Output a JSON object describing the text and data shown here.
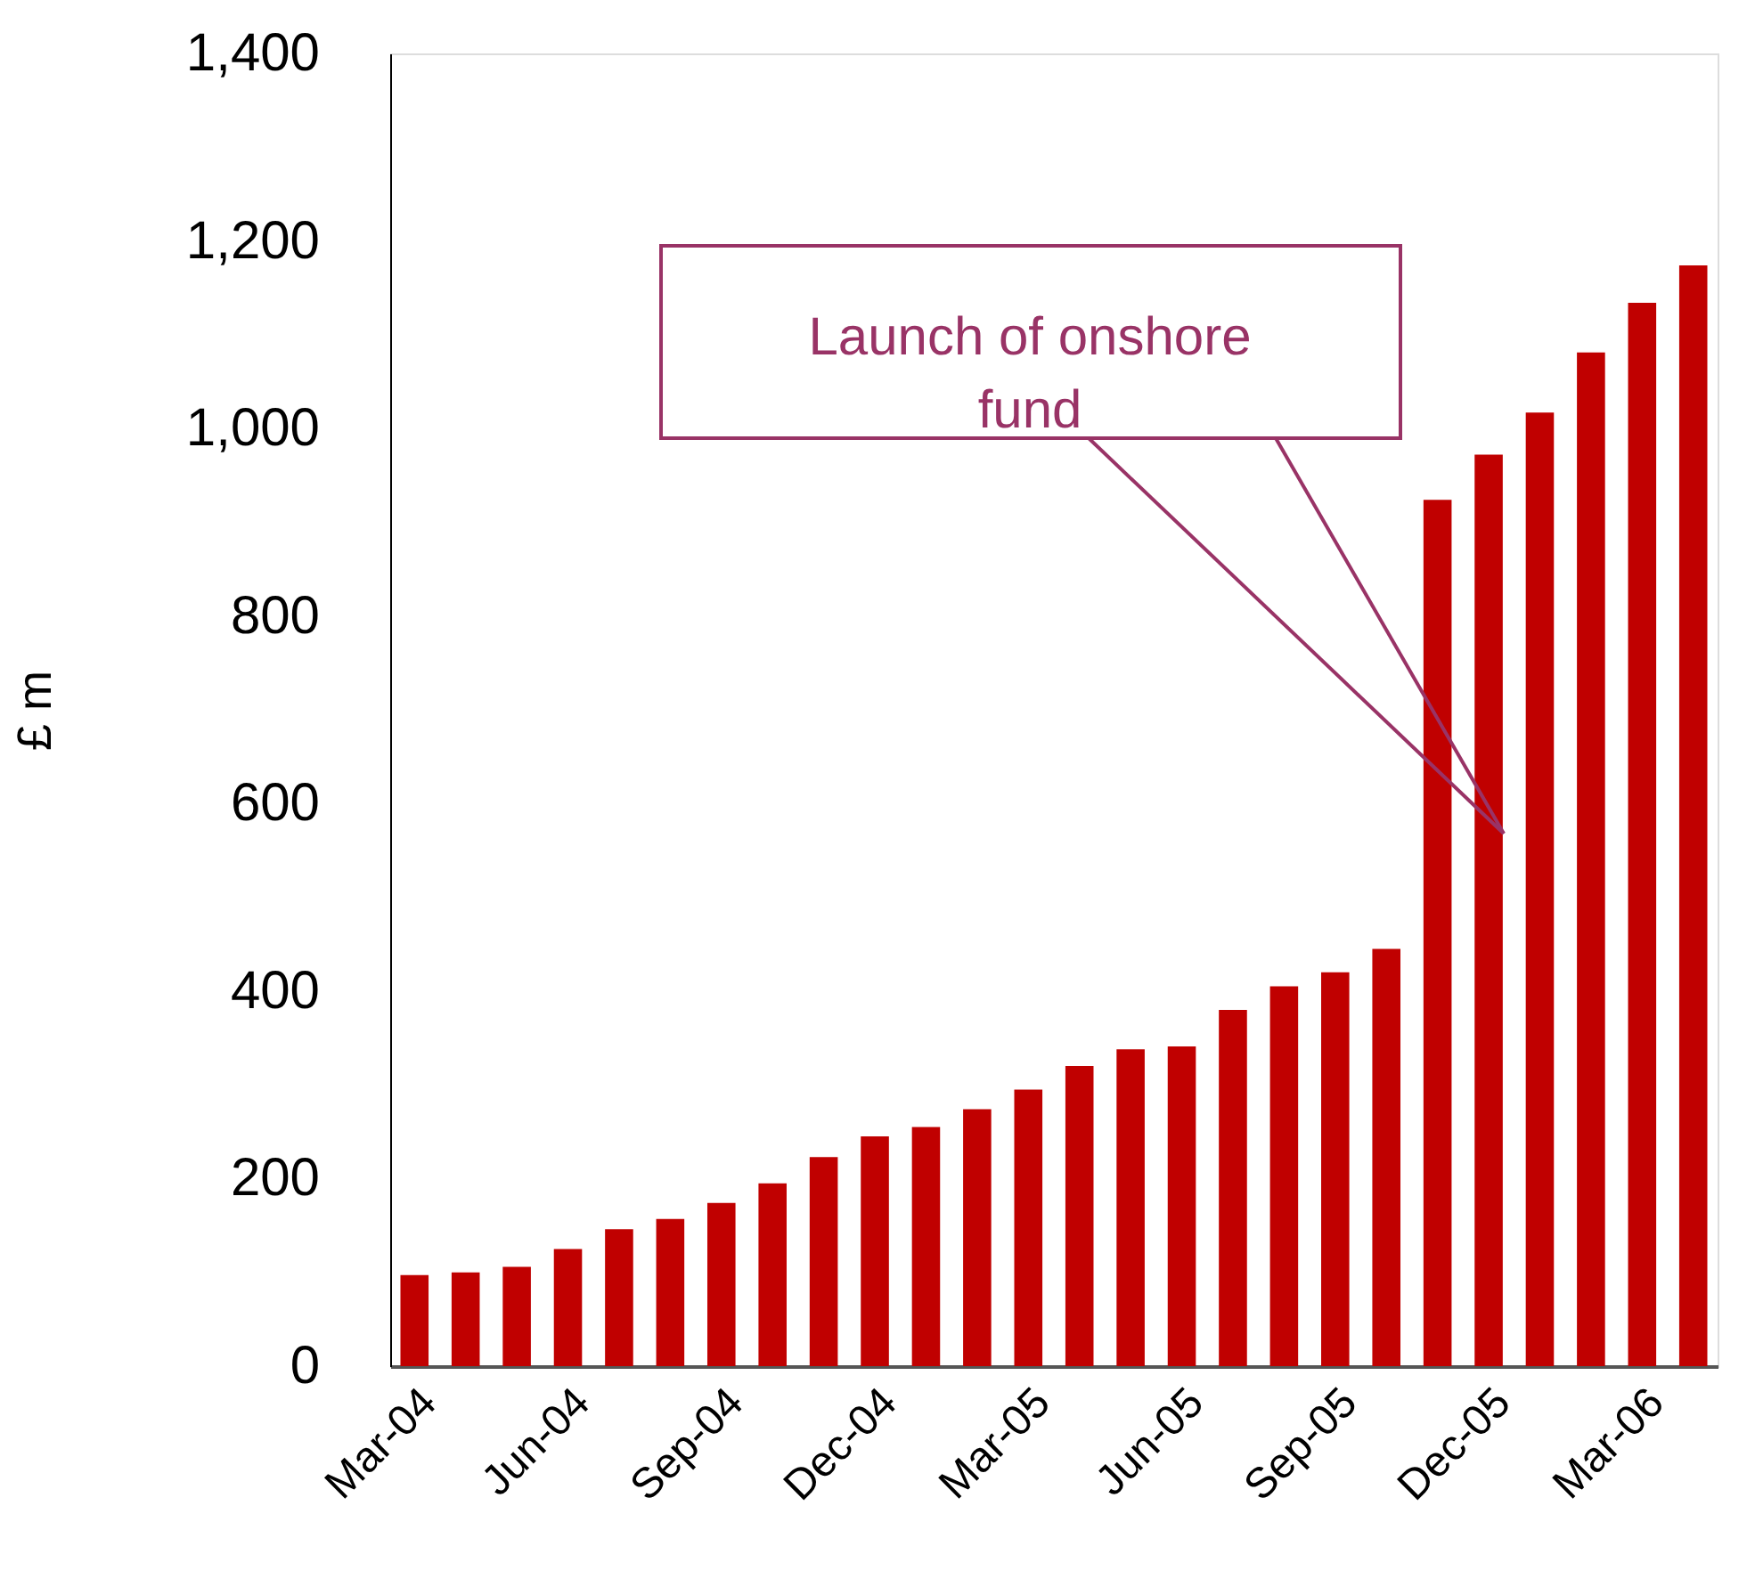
{
  "chart_data": {
    "type": "bar",
    "ylabel": "£ m",
    "categories": [
      "Mar-04",
      null,
      null,
      "Jun-04",
      null,
      null,
      "Sep-04",
      null,
      null,
      "Dec-04",
      null,
      null,
      "Mar-05",
      null,
      null,
      "Jun-05",
      null,
      null,
      "Sep-05",
      null,
      null,
      "Dec-05",
      null,
      null,
      "Mar-06",
      null
    ],
    "values": [
      97,
      100,
      106,
      125,
      146,
      157,
      174,
      195,
      223,
      245,
      255,
      274,
      295,
      320,
      338,
      341,
      380,
      405,
      420,
      445,
      924,
      972,
      1017,
      1081,
      1134,
      1174
    ],
    "color": "#c00000",
    "ylim": [
      0,
      1400
    ],
    "yticks": [
      0,
      200,
      400,
      600,
      800,
      {
        "value": 1000,
        "label": "1,000"
      },
      {
        "value": 1200,
        "label": "1,200"
      },
      {
        "value": 1400,
        "label": "1,400"
      }
    ],
    "annotations": [
      "Launch of onshore fund"
    ],
    "grid": false
  }
}
